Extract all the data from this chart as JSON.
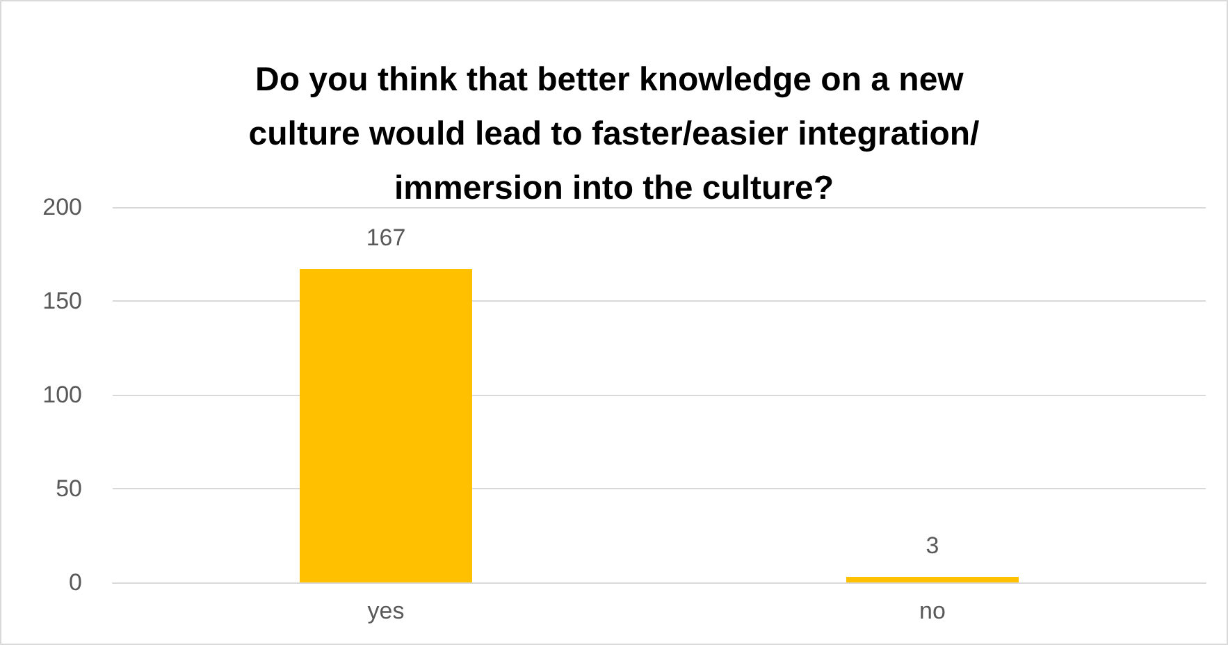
{
  "chart_data": {
    "type": "bar",
    "title": "Do you think that better knowledge on a new culture would lead to faster/easier integration/immersion into the culture?",
    "categories": [
      "yes",
      "no"
    ],
    "values": [
      167,
      3
    ],
    "color": "#ffc000",
    "ylim": [
      0,
      200
    ],
    "yticks": [
      0,
      50,
      100,
      150,
      200
    ],
    "grid": "y",
    "data_labels": true
  }
}
